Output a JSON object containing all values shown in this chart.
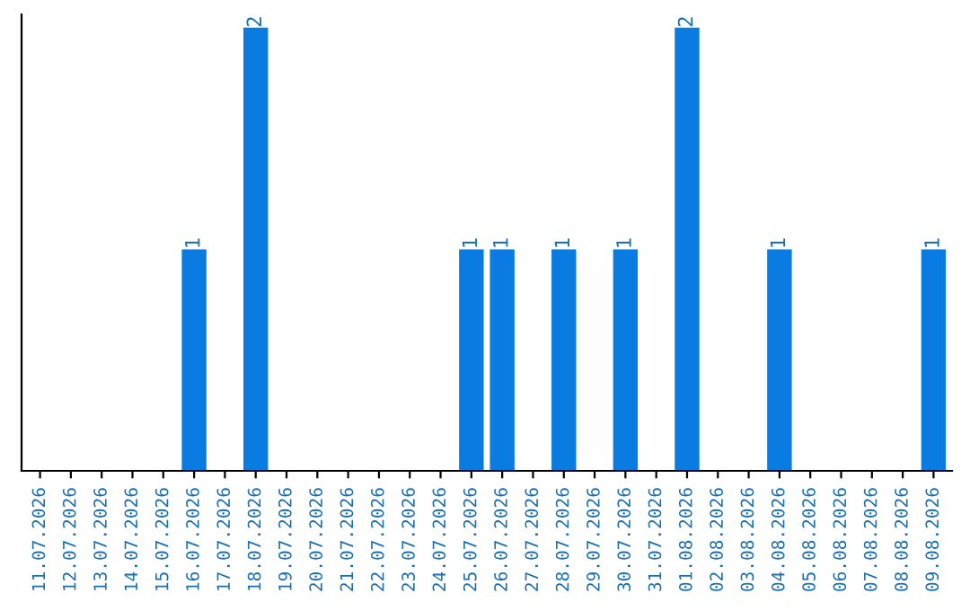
{
  "chart_data": {
    "type": "bar",
    "categories": [
      "11.07.2026",
      "12.07.2026",
      "13.07.2026",
      "14.07.2026",
      "15.07.2026",
      "16.07.2026",
      "17.07.2026",
      "18.07.2026",
      "19.07.2026",
      "20.07.2026",
      "21.07.2026",
      "22.07.2026",
      "23.07.2026",
      "24.07.2026",
      "25.07.2026",
      "26.07.2026",
      "27.07.2026",
      "28.07.2026",
      "29.07.2026",
      "30.07.2026",
      "31.07.2026",
      "01.08.2026",
      "02.08.2026",
      "03.08.2026",
      "04.08.2026",
      "05.08.2026",
      "06.08.2026",
      "07.08.2026",
      "08.08.2026",
      "09.08.2026"
    ],
    "values": [
      0,
      0,
      0,
      0,
      0,
      1,
      0,
      2,
      0,
      0,
      0,
      0,
      0,
      0,
      1,
      1,
      0,
      1,
      0,
      1,
      0,
      2,
      0,
      0,
      1,
      0,
      0,
      0,
      0,
      1
    ],
    "value_labels": [
      null,
      null,
      null,
      null,
      null,
      "1",
      null,
      "2",
      null,
      null,
      null,
      null,
      null,
      null,
      "1",
      "1",
      null,
      "1",
      null,
      "1",
      null,
      "2",
      null,
      null,
      "1",
      null,
      null,
      null,
      null,
      "1"
    ],
    "color": "#0a7be0",
    "tick_labels": "x",
    "grid": false,
    "legend": false
  }
}
